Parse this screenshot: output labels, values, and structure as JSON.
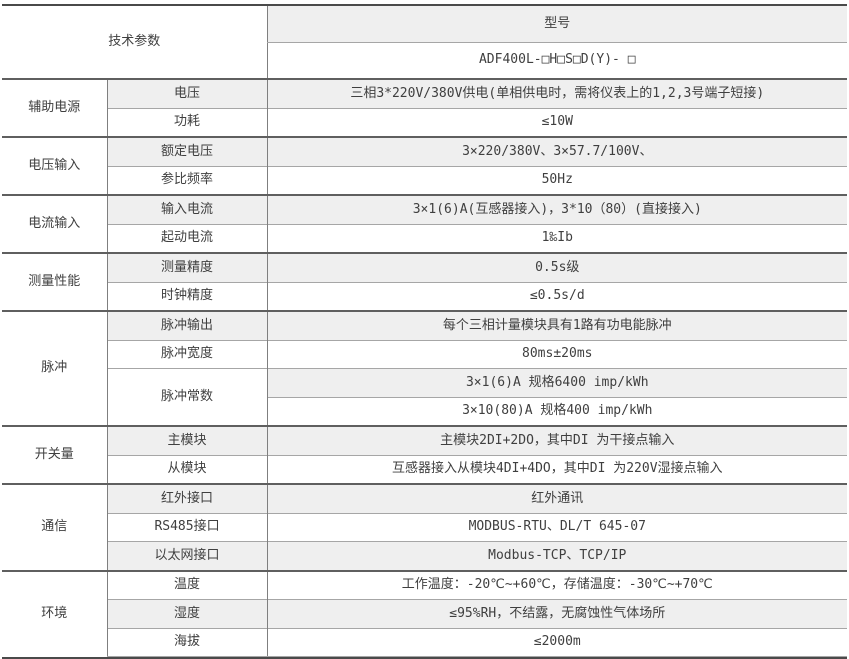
{
  "table": {
    "title": "技术参数",
    "model": {
      "label": "型号",
      "value": "ADF400L-□H□S□D(Y)- □"
    },
    "groups": [
      {
        "name": "辅助电源",
        "rows": [
          {
            "param": "电压",
            "value": "三相3*220V/380V供电(单相供电时，需将仪表上的1,2,3号端子短接)"
          },
          {
            "param": "功耗",
            "value": "≤10W"
          }
        ]
      },
      {
        "name": "电压输入",
        "rows": [
          {
            "param": "额定电压",
            "value": "3×220/380V、3×57.7/100V、"
          },
          {
            "param": "参比频率",
            "value": "50Hz"
          }
        ]
      },
      {
        "name": "电流输入",
        "rows": [
          {
            "param": "输入电流",
            "value": "3×1(6)A(互感器接入)，3*10（80）(直接接入)"
          },
          {
            "param": "起动电流",
            "value": "1‰Ib"
          }
        ]
      },
      {
        "name": "测量性能",
        "rows": [
          {
            "param": "测量精度",
            "value": "0.5s级"
          },
          {
            "param": "时钟精度",
            "value": "≤0.5s/d"
          }
        ]
      },
      {
        "name": "脉冲",
        "rows": [
          {
            "param": "脉冲输出",
            "value": "每个三相计量模块具有1路有功电能脉冲"
          },
          {
            "param": "脉冲宽度",
            "value": "80ms±20ms"
          },
          {
            "param": "脉冲常数",
            "values": [
              "3×1(6)A 规格6400 imp/kWh",
              "3×10(80)A 规格400 imp/kWh"
            ]
          }
        ]
      },
      {
        "name": "开关量",
        "rows": [
          {
            "param": "主模块",
            "value": "主模块2DI+2DO，其中DI 为干接点输入"
          },
          {
            "param": "从模块",
            "value": "互感器接入从模块4DI+4DO，其中DI 为220V湿接点输入"
          }
        ]
      },
      {
        "name": "通信",
        "rows": [
          {
            "param": "红外接口",
            "value": "红外通讯"
          },
          {
            "param": "RS485接口",
            "value": "MODBUS-RTU、DL/T 645-07"
          },
          {
            "param": "以太网接口",
            "value": "Modbus-TCP、TCP/IP"
          }
        ]
      },
      {
        "name": "环境",
        "rows": [
          {
            "param": "温度",
            "value": "工作温度：-20℃~+60℃，存储温度：-30℃~+70℃"
          },
          {
            "param": "湿度",
            "value": "≤95%RH，不结露，无腐蚀性气体场所"
          },
          {
            "param": "海拔",
            "value": "≤2000m"
          }
        ]
      }
    ]
  },
  "colors": {
    "row_shade": "#efefef",
    "outer_border": "#4a4a4a",
    "group_border": "#5f5f5f",
    "inner_border": "#a6a6a6",
    "vertical_border": "#7f7f7f",
    "text": "#3f3f3f"
  }
}
